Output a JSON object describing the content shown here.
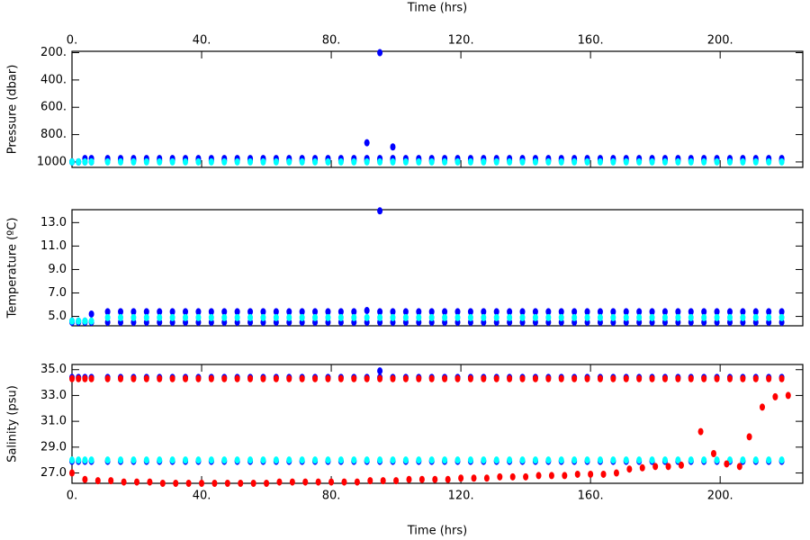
{
  "chart_data": [
    {
      "type": "scatter",
      "xlabel": "Time (hrs)",
      "ylabel": "Pressure (dbar)",
      "xlim": [
        0,
        225.5
      ],
      "xticks": [
        {
          "value": 0,
          "label": "0."
        },
        {
          "value": 40,
          "label": "40."
        },
        {
          "value": 80,
          "label": "80."
        },
        {
          "value": 120,
          "label": "120."
        },
        {
          "value": 160,
          "label": "160."
        },
        {
          "value": 200,
          "label": "200."
        }
      ],
      "ylim": [
        1040,
        190
      ],
      "yticks": [
        {
          "value": 200,
          "label": "200."
        },
        {
          "value": 400,
          "label": "400."
        },
        {
          "value": 600,
          "label": "600."
        },
        {
          "value": 800,
          "label": "800."
        },
        1000
      ],
      "x": [
        0,
        2,
        4,
        6,
        11,
        15,
        19,
        23,
        27,
        31,
        35,
        39,
        43,
        47,
        51,
        55,
        59,
        63,
        67,
        71,
        75,
        79,
        83,
        87,
        91,
        95,
        99,
        103,
        107,
        111,
        115,
        119,
        123,
        127,
        131,
        135,
        139,
        143,
        147,
        151,
        155,
        159,
        163,
        167,
        171,
        175,
        179,
        183,
        187,
        191,
        195,
        199,
        203,
        207,
        211,
        215,
        219
      ],
      "series": [
        {
          "color": "#0000ff",
          "values": [
            1000,
            1000,
            975,
            975,
            975,
            975,
            975,
            975,
            975,
            975,
            975,
            975,
            975,
            975,
            975,
            975,
            975,
            975,
            975,
            975,
            975,
            975,
            975,
            975,
            975,
            975,
            975,
            975,
            975,
            975,
            975,
            975,
            975,
            975,
            975,
            975,
            975,
            975,
            975,
            975,
            975,
            975,
            975,
            975,
            975,
            975,
            975,
            975,
            975,
            975,
            975,
            975,
            975,
            975,
            975,
            975,
            975
          ]
        },
        {
          "color": "#0000ff",
          "values": [
            1000,
            1000,
            1000,
            1000,
            990,
            990,
            990,
            990,
            990,
            990,
            990,
            990,
            990,
            990,
            990,
            990,
            990,
            990,
            990,
            990,
            990,
            990,
            990,
            990,
            990,
            990,
            990,
            990,
            990,
            990,
            990,
            990,
            990,
            990,
            990,
            990,
            990,
            990,
            990,
            990,
            990,
            990,
            990,
            990,
            990,
            990,
            990,
            990,
            990,
            990,
            990,
            990,
            990,
            990,
            990,
            990,
            990
          ]
        },
        {
          "color": "#00ffff",
          "values": [
            1000,
            1000,
            1000,
            1000,
            1000,
            1000,
            1000,
            1000,
            1000,
            1000,
            1000,
            1000,
            1000,
            1000,
            1000,
            1000,
            1000,
            1000,
            1000,
            1000,
            1000,
            1000,
            1000,
            1000,
            1000,
            1000,
            1000,
            1000,
            1000,
            1000,
            1000,
            1000,
            1000,
            1000,
            1000,
            1000,
            1000,
            1000,
            1000,
            1000,
            1000,
            1000,
            1000,
            1000,
            1000,
            1000,
            1000,
            1000,
            1000,
            1000,
            1000,
            1000,
            1000,
            1000,
            1000,
            1000,
            1000
          ]
        },
        {
          "color": "#0000ff",
          "x": [
            91,
            95,
            99
          ],
          "values": [
            860,
            200,
            890
          ]
        }
      ]
    },
    {
      "type": "scatter",
      "ylabel": "Temperature (ºC)",
      "xlim": [
        0,
        225.5
      ],
      "ylim": [
        4.2,
        14.1
      ],
      "yticks": [
        {
          "value": 5,
          "label": "5.0"
        },
        {
          "value": 7,
          "label": "7.0"
        },
        {
          "value": 9,
          "label": "9.0"
        },
        {
          "value": 11,
          "label": "11.0"
        },
        {
          "value": 13,
          "label": "13.0"
        }
      ],
      "x": [
        0,
        2,
        4,
        6,
        11,
        15,
        19,
        23,
        27,
        31,
        35,
        39,
        43,
        47,
        51,
        55,
        59,
        63,
        67,
        71,
        75,
        79,
        83,
        87,
        91,
        95,
        99,
        103,
        107,
        111,
        115,
        119,
        123,
        127,
        131,
        135,
        139,
        143,
        147,
        151,
        155,
        159,
        163,
        167,
        171,
        175,
        179,
        183,
        187,
        191,
        195,
        199,
        203,
        207,
        211,
        215,
        219
      ],
      "series": [
        {
          "color": "#0000ff",
          "values": [
            4.6,
            4.6,
            4.6,
            5.2,
            5.4,
            5.4,
            5.4,
            5.4,
            5.4,
            5.4,
            5.4,
            5.4,
            5.4,
            5.4,
            5.4,
            5.4,
            5.4,
            5.4,
            5.4,
            5.4,
            5.4,
            5.4,
            5.4,
            5.4,
            5.5,
            5.4,
            5.4,
            5.4,
            5.4,
            5.4,
            5.4,
            5.4,
            5.4,
            5.4,
            5.4,
            5.4,
            5.4,
            5.4,
            5.4,
            5.4,
            5.4,
            5.4,
            5.4,
            5.4,
            5.4,
            5.4,
            5.4,
            5.4,
            5.4,
            5.4,
            5.4,
            5.4,
            5.4,
            5.4,
            5.4,
            5.4,
            5.4
          ]
        },
        {
          "color": "#0000ff",
          "values": [
            4.5,
            4.5,
            4.5,
            4.5,
            4.5,
            4.5,
            4.5,
            4.5,
            4.5,
            4.5,
            4.5,
            4.5,
            4.5,
            4.5,
            4.5,
            4.5,
            4.5,
            4.5,
            4.5,
            4.5,
            4.5,
            4.5,
            4.5,
            4.5,
            4.5,
            4.5,
            4.5,
            4.5,
            4.5,
            4.5,
            4.5,
            4.5,
            4.5,
            4.5,
            4.5,
            4.5,
            4.5,
            4.5,
            4.5,
            4.5,
            4.5,
            4.5,
            4.5,
            4.5,
            4.5,
            4.5,
            4.5,
            4.5,
            4.5,
            4.5,
            4.5,
            4.5,
            4.5,
            4.5,
            4.5,
            4.5,
            4.5
          ]
        },
        {
          "color": "#00ffff",
          "values": [
            4.6,
            4.6,
            4.6,
            4.6,
            4.9,
            4.9,
            4.9,
            4.9,
            4.9,
            4.9,
            4.9,
            4.9,
            4.9,
            4.9,
            4.9,
            4.9,
            4.9,
            4.9,
            4.9,
            4.9,
            4.9,
            4.9,
            4.9,
            4.9,
            4.9,
            4.9,
            4.9,
            4.9,
            4.9,
            4.9,
            4.9,
            4.9,
            4.9,
            4.9,
            4.9,
            4.9,
            4.9,
            4.9,
            4.9,
            4.9,
            4.9,
            4.9,
            4.9,
            4.9,
            4.9,
            4.9,
            4.9,
            4.9,
            4.9,
            4.9,
            4.9,
            4.9,
            4.9,
            4.9,
            4.9,
            4.9,
            4.9
          ]
        },
        {
          "color": "#0000ff",
          "x": [
            95
          ],
          "values": [
            14.0
          ]
        }
      ]
    },
    {
      "type": "scatter",
      "xlabel": "Time (hrs)",
      "ylabel": "Salinity (psu)",
      "xlim": [
        0,
        225.5
      ],
      "xticks": [
        {
          "value": 0,
          "label": "0."
        },
        {
          "value": 40,
          "label": "40."
        },
        {
          "value": 80,
          "label": "80."
        },
        {
          "value": 120,
          "label": "120."
        },
        {
          "value": 160,
          "label": "160."
        },
        {
          "value": 200,
          "label": "200."
        }
      ],
      "ylim": [
        26.2,
        35.4
      ],
      "yticks": [
        {
          "value": 27,
          "label": "27.0"
        },
        {
          "value": 29,
          "label": "29.0"
        },
        {
          "value": 31,
          "label": "31.0"
        },
        {
          "value": 33,
          "label": "33.0"
        },
        {
          "value": 35,
          "label": "35.0"
        }
      ],
      "x": [
        0,
        2,
        4,
        6,
        11,
        15,
        19,
        23,
        27,
        31,
        35,
        39,
        43,
        47,
        51,
        55,
        59,
        63,
        67,
        71,
        75,
        79,
        83,
        87,
        91,
        95,
        99,
        103,
        107,
        111,
        115,
        119,
        123,
        127,
        131,
        135,
        139,
        143,
        147,
        151,
        155,
        159,
        163,
        167,
        171,
        175,
        179,
        183,
        187,
        191,
        195,
        199,
        203,
        207,
        211,
        215,
        219
      ],
      "series": [
        {
          "color": "#0000ff",
          "values": [
            34.4,
            34.4,
            34.4,
            34.4,
            34.4,
            34.4,
            34.4,
            34.4,
            34.4,
            34.4,
            34.4,
            34.4,
            34.4,
            34.4,
            34.4,
            34.4,
            34.4,
            34.4,
            34.4,
            34.4,
            34.4,
            34.4,
            34.4,
            34.4,
            34.4,
            34.4,
            34.4,
            34.4,
            34.4,
            34.4,
            34.4,
            34.4,
            34.4,
            34.4,
            34.4,
            34.4,
            34.4,
            34.4,
            34.4,
            34.4,
            34.4,
            34.4,
            34.4,
            34.4,
            34.4,
            34.4,
            34.4,
            34.4,
            34.4,
            34.4,
            34.4,
            34.4,
            34.4,
            34.4,
            34.4,
            34.4,
            34.4
          ]
        },
        {
          "color": "#ff0000",
          "values": [
            34.3,
            34.3,
            34.3,
            34.3,
            34.3,
            34.3,
            34.3,
            34.3,
            34.3,
            34.3,
            34.3,
            34.3,
            34.3,
            34.3,
            34.3,
            34.3,
            34.3,
            34.3,
            34.3,
            34.3,
            34.3,
            34.3,
            34.3,
            34.3,
            34.3,
            34.3,
            34.3,
            34.3,
            34.3,
            34.3,
            34.3,
            34.3,
            34.3,
            34.3,
            34.3,
            34.3,
            34.3,
            34.3,
            34.3,
            34.3,
            34.3,
            34.3,
            34.3,
            34.3,
            34.3,
            34.3,
            34.3,
            34.3,
            34.3,
            34.3,
            34.3,
            34.3,
            34.3,
            34.3,
            34.3,
            34.3,
            34.3
          ]
        },
        {
          "color": "#0000ff",
          "values": [
            27.9,
            27.9,
            27.9,
            27.9,
            27.9,
            27.9,
            27.9,
            27.9,
            27.9,
            27.9,
            27.9,
            27.9,
            27.9,
            27.9,
            27.9,
            27.9,
            27.9,
            27.9,
            27.9,
            27.9,
            27.9,
            27.9,
            27.9,
            27.9,
            27.9,
            27.9,
            27.9,
            27.9,
            27.9,
            27.9,
            27.9,
            27.9,
            27.9,
            27.9,
            27.9,
            27.9,
            27.9,
            27.9,
            27.9,
            27.9,
            27.9,
            27.9,
            27.9,
            27.9,
            27.9,
            27.9,
            27.9,
            27.9,
            27.9,
            27.9,
            27.9,
            27.9,
            27.9,
            27.9,
            27.9,
            27.9,
            27.9
          ]
        },
        {
          "color": "#00ffff",
          "values": [
            28.0,
            28.0,
            28.0,
            28.0,
            28.0,
            28.0,
            28.0,
            28.0,
            28.0,
            28.0,
            28.0,
            28.0,
            28.0,
            28.0,
            28.0,
            28.0,
            28.0,
            28.0,
            28.0,
            28.0,
            28.0,
            28.0,
            28.0,
            28.0,
            28.0,
            28.0,
            28.0,
            28.0,
            28.0,
            28.0,
            28.0,
            28.0,
            28.0,
            28.0,
            28.0,
            28.0,
            28.0,
            28.0,
            28.0,
            28.0,
            28.0,
            28.0,
            28.0,
            28.0,
            28.0,
            28.0,
            28.0,
            28.0,
            28.0,
            28.0,
            28.0,
            28.0,
            28.0,
            28.0,
            28.0,
            28.0,
            28.0
          ]
        },
        {
          "color": "#ff0000",
          "x": [
            0,
            4,
            8,
            12,
            16,
            20,
            24,
            28,
            32,
            36,
            40,
            44,
            48,
            52,
            56,
            60,
            64,
            68,
            72,
            76,
            80,
            84,
            88,
            92,
            96,
            100,
            104,
            108,
            112,
            116,
            120,
            124,
            128,
            132,
            136,
            140,
            144,
            148,
            152,
            156,
            160,
            164,
            168,
            172,
            176,
            180,
            184,
            188,
            194,
            198,
            202,
            206,
            209,
            213,
            217,
            221
          ],
          "values": [
            27.0,
            26.5,
            26.4,
            26.4,
            26.3,
            26.3,
            26.3,
            26.2,
            26.2,
            26.2,
            26.2,
            26.2,
            26.2,
            26.2,
            26.2,
            26.2,
            26.3,
            26.3,
            26.3,
            26.3,
            26.3,
            26.3,
            26.3,
            26.4,
            26.4,
            26.4,
            26.5,
            26.5,
            26.5,
            26.5,
            26.6,
            26.6,
            26.6,
            26.7,
            26.7,
            26.7,
            26.8,
            26.8,
            26.8,
            26.9,
            26.9,
            26.9,
            27.0,
            27.3,
            27.4,
            27.5,
            27.5,
            27.6,
            30.2,
            28.5,
            27.7,
            27.5,
            29.8,
            32.1,
            32.9,
            33.0
          ]
        },
        {
          "color": "#0000ff",
          "x": [
            95
          ],
          "values": [
            34.9
          ]
        }
      ]
    }
  ]
}
